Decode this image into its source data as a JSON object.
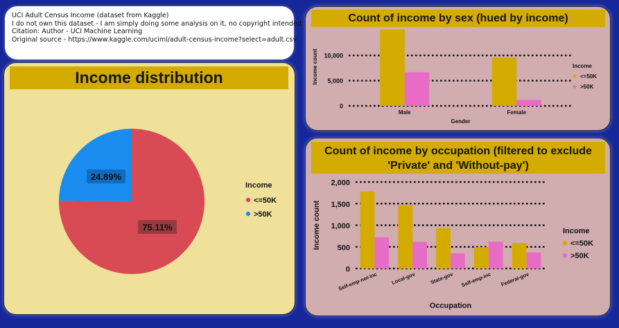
{
  "info": {
    "lines": [
      "UCI Adult Census Income (dataset from Kaggle)",
      "I do not own this dataset - I am simply doing some analysis on it, no copyright intended.",
      "Citation:  Author - UCI Machine Learning",
      "Original source - https://www.kaggle.com/uciml/adult-census-income?select=adult.csv"
    ]
  },
  "colors": {
    "le50k_pie": "#d84a54",
    "gt50k_pie": "#1a8cf0",
    "le50k_bar": "#d4ab00",
    "gt50k_bar": "#e86cc6"
  },
  "chart_data": [
    {
      "type": "pie",
      "title": "Income distribution",
      "labels": [
        "<=50K",
        ">50K"
      ],
      "values": [
        75.11,
        24.89
      ],
      "value_labels": [
        "75.11%",
        "24.89%"
      ],
      "legend_title": "Income",
      "legend_placement": "right"
    },
    {
      "type": "bar",
      "title": "Count of income by sex (hued by income)",
      "categories": [
        "Male",
        "Female"
      ],
      "series": [
        {
          "name": "<=50K",
          "values": [
            15128,
            9592
          ]
        },
        {
          "name": ">50K",
          "values": [
            6662,
            1179
          ]
        }
      ],
      "xlabel": "Gender",
      "ylabel": "Income count",
      "ylim": [
        0,
        15500
      ],
      "yticks": [
        0,
        5000,
        10000
      ],
      "ytick_labels": [
        "0",
        "5,000",
        "10,000"
      ],
      "grid": true,
      "legend_title": "Income",
      "legend_placement": "right"
    },
    {
      "type": "bar",
      "title": "Count of income by occupation (filtered to exclude 'Private' and 'Without-pay')",
      "categories": [
        "Self-emp-not-inc",
        "Local-gov",
        "State-gov",
        "Self-emp-inc",
        "Federal-gov"
      ],
      "series": [
        {
          "name": "<=50K",
          "values": [
            1785,
            1458,
            935,
            494,
            589
          ]
        },
        {
          "name": ">50K",
          "values": [
            724,
            617,
            353,
            622,
            371
          ]
        }
      ],
      "xlabel": "Occupation",
      "ylabel": "Income count",
      "ylim": [
        0,
        2000
      ],
      "yticks": [
        0,
        500,
        1000,
        1500,
        2000
      ],
      "ytick_labels": [
        "0",
        "500",
        "1,000",
        "1,500",
        "2,000"
      ],
      "grid": true,
      "legend_title": "Income",
      "legend_placement": "right"
    }
  ]
}
